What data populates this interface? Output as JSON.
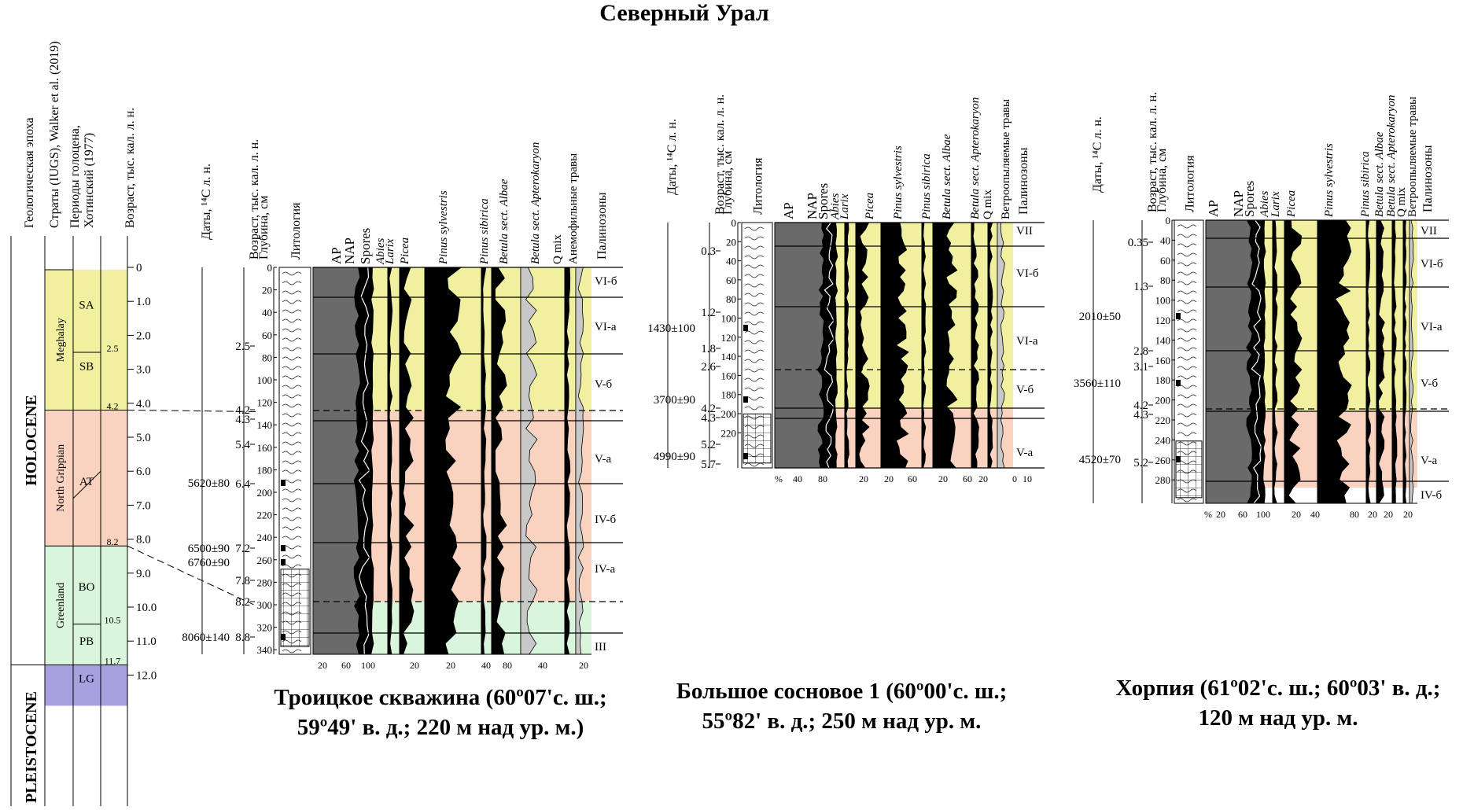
{
  "title": "Северный Урал",
  "scale": {
    "headers": [
      "Геологическая эпоха",
      "Страты (IUGS), Walker et al. (2019)",
      "Периоды голоцена,",
      "Хотинский (1977)",
      "Возраст, тыс. кал. л. н."
    ],
    "epochs": [
      "HOLOCENE",
      "PLEISTOCENE"
    ],
    "strata": [
      "Meghalay",
      "North Grippian",
      "Greenland"
    ],
    "periods": [
      "SA",
      "SB",
      "AT",
      "BO",
      "PB",
      "LG"
    ],
    "period_bounds": [
      "2.5",
      "4.2",
      "8.2",
      "10.5",
      "11.7"
    ],
    "ticks": [
      "0",
      "1.0",
      "2.0",
      "3.0",
      "4.0",
      "5.0",
      "6.0",
      "7.0",
      "8.0",
      "9.0",
      "10.0",
      "11.0",
      "12.0"
    ],
    "colors": {
      "meghalay": "#f0f0a0",
      "north_grippian": "#f9d2c0",
      "greenland": "#d9f5dc",
      "pleistocene": "#a9a0e0"
    }
  },
  "common_headers": {
    "dates": "Даты, ¹⁴С л. н.",
    "age": "Возраст, тыс. кал. л. н.",
    "depth": "Глубина, см",
    "litho": "Литология",
    "zones": "Палинозоны"
  },
  "site1": {
    "caption": [
      "Троицкое скважина (60º07'с. ш.;",
      "59º49' в. д.; 220 м над ур. м.)"
    ],
    "taxa": [
      "AP",
      "NAP",
      "Spores",
      "Abies",
      "Larix",
      "Picea",
      "Pinus sylvestris",
      "Pinus sibirica",
      "Betula sect. Albae",
      "Betula sect. Apterokaryon",
      "Q mix",
      "Анемофильные травы"
    ],
    "dates": [
      "5620±80",
      "6500±90",
      "6760±90",
      "8060±140"
    ],
    "ages": [
      "2.5",
      "4.2",
      "4.3",
      "5.4",
      "6.4",
      "7.2",
      "7.8",
      "8.2",
      "8.8"
    ],
    "depths": [
      "0",
      "20",
      "40",
      "60",
      "80",
      "100",
      "120",
      "140",
      "160",
      "180",
      "200",
      "220",
      "240",
      "260",
      "280",
      "300",
      "320",
      "340"
    ],
    "zones": [
      "VI-б",
      "VI-a",
      "V-б",
      "V-a",
      "IV-б",
      "IV-a",
      "III"
    ],
    "axis": [
      "20",
      "60",
      "100",
      "20",
      "20",
      "40",
      "80",
      "40",
      "20"
    ]
  },
  "site2": {
    "caption": [
      "Большое сосновое 1 (60º00'с. ш.;",
      "55º82' в. д.; 250 м над ур. м."
    ],
    "taxa": [
      "AP",
      "NAP",
      "Spores",
      "Abies",
      "Larix",
      "Picea",
      "Pinus sylvestris",
      "Pinus sibirica",
      "Betula sect. Albae",
      "Betula sect. Apterokaryon",
      "Q mix",
      "Ветроопыляемые травы"
    ],
    "dates": [
      "1430±100",
      "3700±90",
      "4990±90"
    ],
    "ages": [
      "0.3",
      "1.2",
      "1.8",
      "2.6",
      "4.2",
      "4.3",
      "5.2",
      "5.7"
    ],
    "depths": [
      "0",
      "20",
      "40",
      "60",
      "80",
      "100",
      "120",
      "140",
      "160",
      "180",
      "200",
      "220"
    ],
    "zones": [
      "VII",
      "VI-б",
      "VI-a",
      "V-б",
      "V-a"
    ],
    "axis": [
      "%",
      "40",
      "80",
      "20",
      "20",
      "60",
      "20",
      "60",
      "20",
      "0",
      "10"
    ]
  },
  "site3": {
    "caption": [
      "Хорпия (61º02'с. ш.; 60º03' в. д.;",
      "120 м над ур. м."
    ],
    "taxa": [
      "AP",
      "NAP",
      "Spores",
      "Abies",
      "Larix",
      "Picea",
      "Pinus sylvestris",
      "Pinus sibirica",
      "Betula sect. Albae",
      "Betula sect. Apterokaryon",
      "Q mix",
      "Ветроопыляемые травы"
    ],
    "dates": [
      "2010±50",
      "3560±110",
      "4520±70"
    ],
    "ages": [
      "0.35",
      "1.3",
      "2.8",
      "3.1",
      "4.2",
      "4.3",
      "5.2"
    ],
    "depths": [
      "0",
      "40",
      "60",
      "80",
      "100",
      "120",
      "140",
      "160",
      "180",
      "200",
      "220",
      "240",
      "260",
      "280"
    ],
    "zones": [
      "VII",
      "VI-б",
      "VI-a",
      "V-б",
      "V-a",
      "IV-б"
    ],
    "axis": [
      "%",
      "20",
      "60",
      "100",
      "20",
      "40",
      "80",
      "20",
      "20",
      "20"
    ]
  }
}
